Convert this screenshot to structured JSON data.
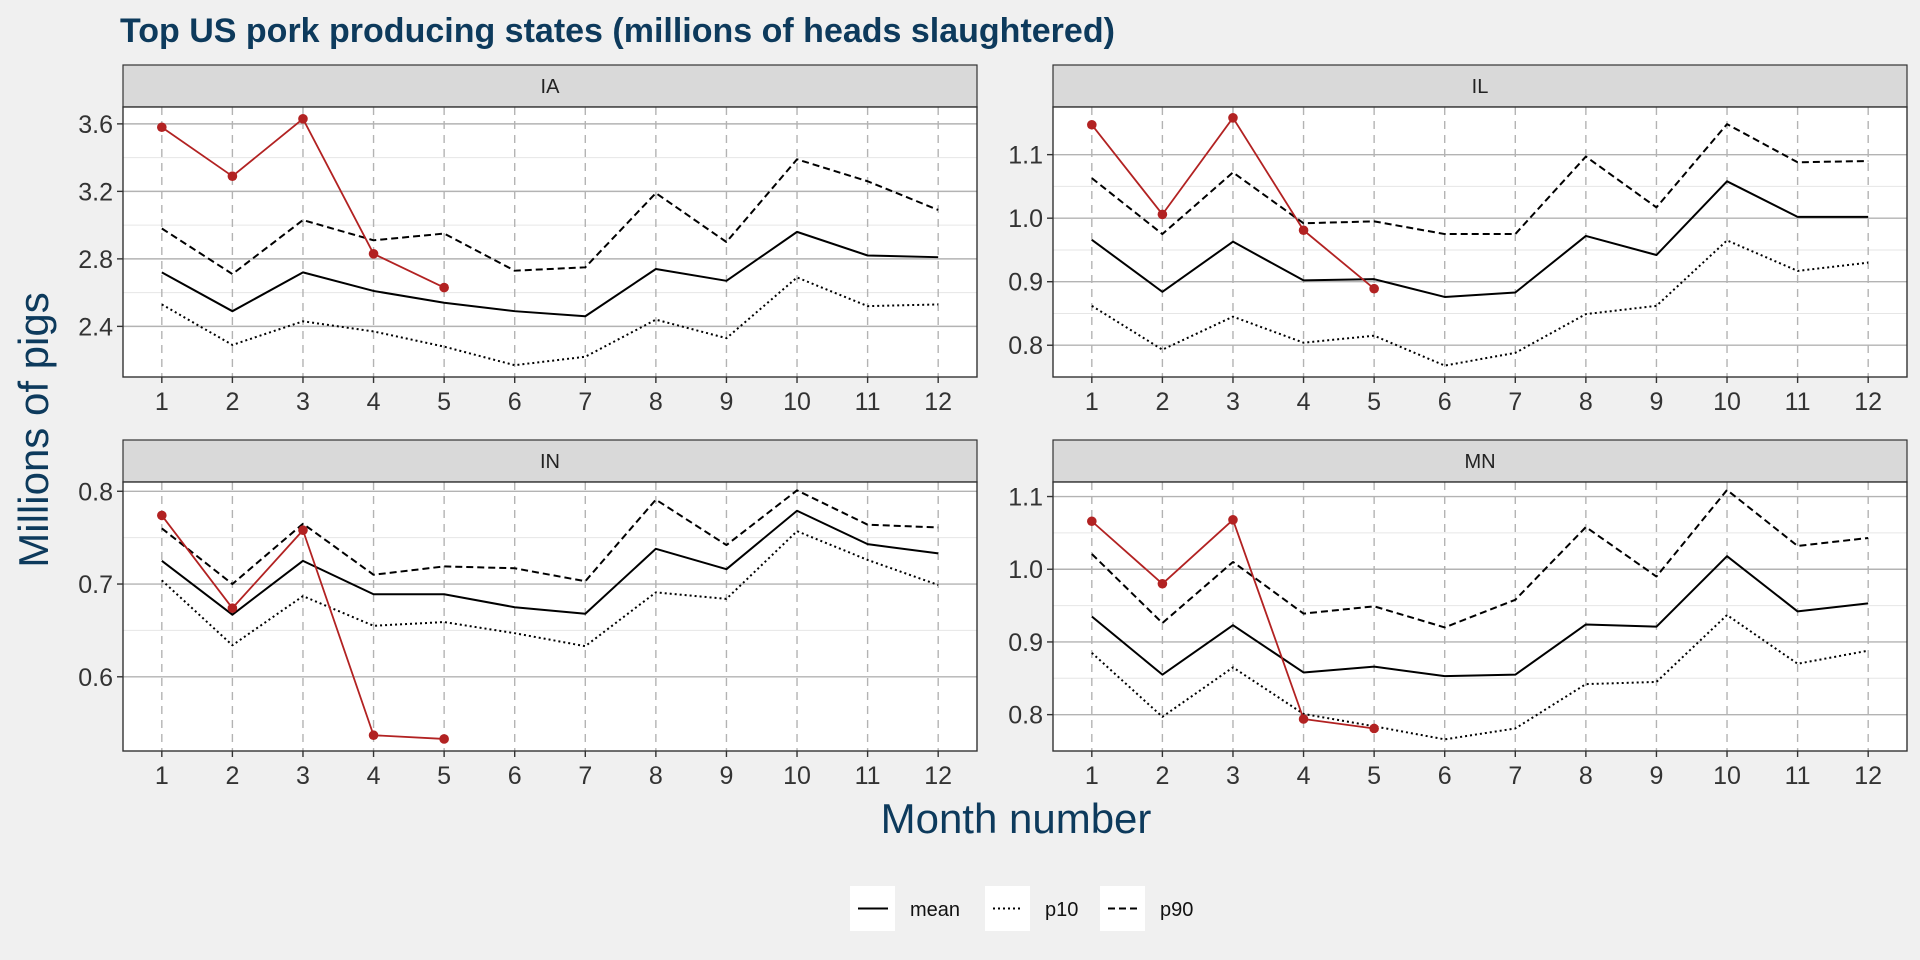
{
  "chart_data": {
    "type": "line",
    "title": "Top US pork producing states (millions of heads slaughtered)",
    "xlabel": "Month number",
    "ylabel": "Millions of pigs",
    "x": [
      1,
      2,
      3,
      4,
      5,
      6,
      7,
      8,
      9,
      10,
      11,
      12
    ],
    "legend": {
      "position": "bottom",
      "entries": [
        {
          "name": "mean",
          "linetype": "solid"
        },
        {
          "name": "p10",
          "linetype": "dotted"
        },
        {
          "name": "p90",
          "linetype": "dashed"
        }
      ]
    },
    "colors": {
      "reference": "#000000",
      "current": "#b22222",
      "strip": "#d9d9d9",
      "background": "#f0f0f0",
      "title": "#0d3a5c"
    },
    "panels": [
      {
        "strip": "IA",
        "ylim": [
          2.1,
          3.7
        ],
        "yticks": [
          2.4,
          2.8,
          3.2,
          3.6
        ],
        "ytick_labels": [
          "2.4",
          "2.8",
          "3.2",
          "3.6"
        ],
        "series": [
          {
            "name": "mean",
            "values": [
              2.72,
              2.49,
              2.72,
              2.61,
              2.54,
              2.49,
              2.46,
              2.74,
              2.67,
              2.96,
              2.82,
              2.81
            ]
          },
          {
            "name": "p10",
            "values": [
              2.53,
              2.29,
              2.43,
              2.37,
              2.28,
              2.17,
              2.22,
              2.44,
              2.33,
              2.69,
              2.52,
              2.53
            ]
          },
          {
            "name": "p90",
            "values": [
              2.98,
              2.71,
              3.03,
              2.91,
              2.95,
              2.73,
              2.75,
              3.19,
              2.9,
              3.39,
              3.26,
              3.09
            ]
          },
          {
            "name": "",
            "role": "current",
            "values": [
              3.58,
              3.29,
              3.63,
              2.83,
              2.63
            ]
          }
        ]
      },
      {
        "strip": "IL",
        "ylim": [
          0.75,
          1.175
        ],
        "yticks": [
          0.8,
          0.9,
          1.0,
          1.1
        ],
        "ytick_labels": [
          "0.8",
          "0.9",
          "1.0",
          "1.1"
        ],
        "series": [
          {
            "name": "mean",
            "values": [
              0.966,
              0.884,
              0.963,
              0.902,
              0.904,
              0.876,
              0.883,
              0.972,
              0.942,
              1.058,
              1.002,
              1.002
            ]
          },
          {
            "name": "p10",
            "values": [
              0.862,
              0.793,
              0.845,
              0.804,
              0.815,
              0.768,
              0.788,
              0.849,
              0.862,
              0.965,
              0.917,
              0.93
            ]
          },
          {
            "name": "p90",
            "values": [
              1.063,
              0.975,
              1.072,
              0.992,
              0.995,
              0.975,
              0.975,
              1.097,
              1.017,
              1.148,
              1.088,
              1.09
            ]
          },
          {
            "name": "",
            "role": "current",
            "values": [
              1.147,
              1.006,
              1.158,
              0.981,
              0.889
            ]
          }
        ]
      },
      {
        "strip": "IN",
        "ylim": [
          0.52,
          0.81
        ],
        "yticks": [
          0.6,
          0.7,
          0.8
        ],
        "ytick_labels": [
          "0.6",
          "0.7",
          "0.8"
        ],
        "series": [
          {
            "name": "mean",
            "values": [
              0.725,
              0.667,
              0.725,
              0.689,
              0.689,
              0.675,
              0.668,
              0.738,
              0.716,
              0.779,
              0.743,
              0.733
            ]
          },
          {
            "name": "p10",
            "values": [
              0.704,
              0.634,
              0.687,
              0.655,
              0.659,
              0.647,
              0.633,
              0.691,
              0.684,
              0.757,
              0.726,
              0.699
            ]
          },
          {
            "name": "p90",
            "values": [
              0.76,
              0.7,
              0.765,
              0.71,
              0.719,
              0.717,
              0.703,
              0.791,
              0.742,
              0.801,
              0.764,
              0.761
            ]
          },
          {
            "name": "",
            "role": "current",
            "values": [
              0.774,
              0.674,
              0.758,
              0.537,
              0.533
            ]
          }
        ]
      },
      {
        "strip": "MN",
        "ylim": [
          0.75,
          1.12
        ],
        "yticks": [
          0.8,
          0.9,
          1.0,
          1.1
        ],
        "ytick_labels": [
          "0.8",
          "0.9",
          "1.0",
          "1.1"
        ],
        "series": [
          {
            "name": "mean",
            "values": [
              0.935,
              0.855,
              0.923,
              0.858,
              0.866,
              0.853,
              0.855,
              0.924,
              0.921,
              1.018,
              0.942,
              0.953
            ]
          },
          {
            "name": "p10",
            "values": [
              0.885,
              0.797,
              0.865,
              0.801,
              0.784,
              0.766,
              0.781,
              0.842,
              0.845,
              0.937,
              0.87,
              0.888
            ]
          },
          {
            "name": "p90",
            "values": [
              1.021,
              0.926,
              1.01,
              0.939,
              0.949,
              0.92,
              0.958,
              1.058,
              0.99,
              1.109,
              1.032,
              1.043
            ]
          },
          {
            "name": "",
            "role": "current",
            "values": [
              1.066,
              0.98,
              1.068,
              0.794,
              0.781
            ]
          }
        ]
      }
    ]
  },
  "legend_items": [
    {
      "label": "mean"
    },
    {
      "label": "p10"
    },
    {
      "label": "p90"
    }
  ]
}
